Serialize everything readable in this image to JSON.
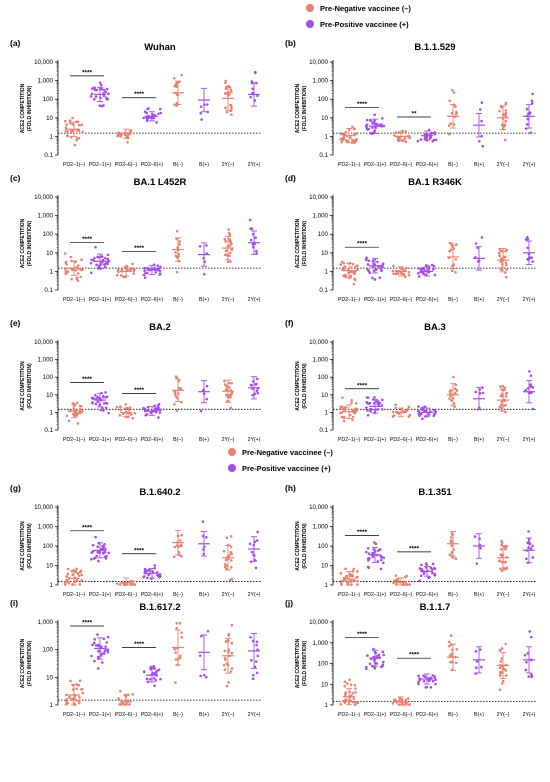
{
  "legend": {
    "negative_label": "Pre-Negative vaccinee (–)",
    "positive_label": "Pre-Positive vaccinee (+)",
    "negative_color": "#e8826f",
    "positive_color": "#a64de8"
  },
  "axis": {
    "ylabel_line1": "ACE2 COMPETITION",
    "ylabel_line2": "(FOLD INHIBITION)",
    "yticks": [
      "0.1",
      "1",
      "10",
      "100",
      "1,000",
      "10,000"
    ],
    "categories": [
      "PD2–1(–)",
      "PD2–1(+)",
      "PD2–6(–)",
      "PD2–6(+)",
      "B(–)",
      "B(+)",
      "2Y(–)",
      "2Y(+)"
    ],
    "sig_top": "****",
    "sig_b1529": "**",
    "threshold": 1.5
  },
  "chart_data": [
    {
      "type": "scatter",
      "panel": "(a)",
      "title": "Wuhan",
      "ylim": [
        0.1,
        10000
      ],
      "gm": [
        2.4,
        180,
        1.4,
        12,
        220,
        90,
        110,
        180
      ],
      "sig": [
        "****",
        "****"
      ]
    },
    {
      "type": "scatter",
      "panel": "(b)",
      "title": "B.1.1.529",
      "ylim": [
        0.1,
        10000
      ],
      "gm": [
        1.1,
        3.5,
        1.0,
        1.1,
        12,
        4,
        10,
        12
      ],
      "sig": [
        "****",
        "**"
      ]
    },
    {
      "type": "scatter",
      "panel": "(c)",
      "title": "BA.1 L452R",
      "ylim": [
        0.1,
        10000
      ],
      "gm": [
        1.5,
        3.5,
        1.0,
        1.2,
        15,
        8,
        18,
        35
      ],
      "sig": [
        "****",
        "****"
      ]
    },
    {
      "type": "scatter",
      "panel": "(d)",
      "title": "BA.1 R346K",
      "ylim": [
        0.1,
        10000
      ],
      "gm": [
        1.1,
        2.0,
        1.0,
        1.0,
        6,
        5,
        4,
        10
      ],
      "sig": [
        "****",
        ""
      ]
    },
    {
      "type": "scatter",
      "panel": "(e)",
      "title": "BA.2",
      "ylim": [
        0.1,
        10000
      ],
      "gm": [
        1.2,
        5,
        1.0,
        1.2,
        18,
        15,
        16,
        25
      ],
      "sig": [
        "****",
        "****"
      ]
    },
    {
      "type": "scatter",
      "panel": "(f)",
      "title": "BA.3",
      "ylim": [
        0.1,
        10000
      ],
      "gm": [
        1.1,
        2.2,
        1.0,
        1.0,
        10,
        6,
        5,
        15
      ],
      "sig": [
        "****",
        ""
      ]
    },
    {
      "type": "scatter",
      "panel": "(g)",
      "title": "B.1.640.2",
      "ylim": [
        1,
        10000
      ],
      "gm": [
        2.2,
        60,
        1.3,
        4,
        150,
        130,
        25,
        70
      ],
      "sig": [
        "****",
        "****"
      ]
    },
    {
      "type": "scatter",
      "panel": "(h)",
      "title": "B.1.351",
      "ylim": [
        1,
        10000
      ],
      "gm": [
        2.0,
        35,
        1.3,
        5,
        130,
        100,
        25,
        60
      ],
      "sig": [
        "****",
        "****"
      ]
    },
    {
      "type": "scatter",
      "panel": "(i)",
      "title": "B.1.617.2",
      "ylim": [
        1,
        1000
      ],
      "gm": [
        2.3,
        110,
        1.3,
        12,
        120,
        80,
        60,
        90
      ],
      "sig": [
        "****",
        "****"
      ]
    },
    {
      "type": "scatter",
      "panel": "(j)",
      "title": "B.1.1.7",
      "ylim": [
        1,
        10000
      ],
      "gm": [
        2.5,
        180,
        1.4,
        18,
        200,
        150,
        80,
        150
      ],
      "sig": [
        "****",
        "****"
      ]
    }
  ]
}
